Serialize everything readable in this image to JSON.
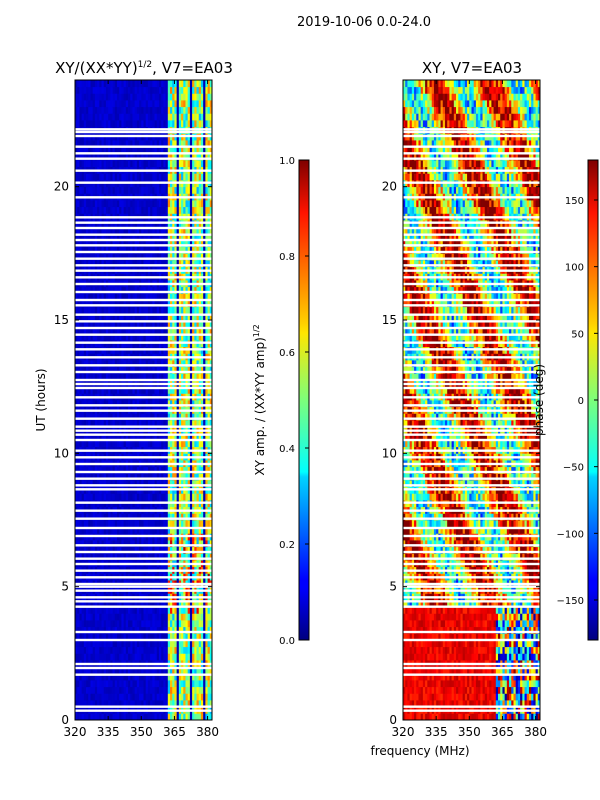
{
  "figure": {
    "suptitle": "2019-10-06 0.0-24.0",
    "shared_xlabel": "frequency (MHz)"
  },
  "chart_data": [
    {
      "type": "heatmap",
      "id": "amp",
      "title_main": "XY/(XX*YY)",
      "title_exp": "1/2",
      "title_tail": ", V7=EA03",
      "ylabel": "UT (hours)",
      "xlim": [
        320,
        382
      ],
      "ylim": [
        0,
        24
      ],
      "xticks": [
        320,
        335,
        350,
        365,
        380
      ],
      "yticks": [
        0,
        5,
        10,
        15,
        20
      ],
      "colorbar": {
        "label_main": "XY amp. / (XX*YY amp)",
        "label_exp": "1/2",
        "range": [
          0.0,
          1.0
        ],
        "ticks": [
          "0.0",
          "0.2",
          "0.4",
          "0.6",
          "0.8",
          "1.0"
        ],
        "tick_values": [
          0.0,
          0.2,
          0.4,
          0.6,
          0.8,
          1.0
        ]
      },
      "description_regions": {
        "low_band_mhz": [
          320,
          362
        ],
        "low_band_value": 0.05,
        "high_band_mhz": [
          362,
          382
        ],
        "high_band_value_range": [
          0.3,
          0.95
        ]
      }
    },
    {
      "type": "heatmap",
      "id": "phase",
      "title_main": "XY, V7=EA03",
      "ylabel": "",
      "xlim": [
        320,
        382
      ],
      "ylim": [
        0,
        24
      ],
      "xticks": [
        320,
        335,
        350,
        365,
        380
      ],
      "yticks": [
        0,
        5,
        10,
        15,
        20
      ],
      "colorbar": {
        "label_main": "phase (deg)",
        "range": [
          -180,
          180
        ],
        "ticks": [
          "−150",
          "−100",
          "−50",
          "0",
          "50",
          "100",
          "150"
        ],
        "tick_values": [
          -150,
          -100,
          -50,
          0,
          50,
          100,
          150
        ]
      },
      "description_regions": {
        "early_hours": [
          0,
          4.3
        ],
        "early_phase_deg": 160,
        "later_phase_range_deg": [
          -180,
          180
        ]
      }
    }
  ],
  "gap_rows_hours": [
    0.35,
    0.5,
    1.7,
    1.95,
    2.1,
    3.0,
    3.3,
    4.25,
    4.45,
    4.6,
    4.85,
    5.0,
    5.1,
    5.35,
    5.6,
    5.85,
    6.05,
    6.3,
    6.55,
    6.9,
    7.2,
    7.55,
    7.85,
    8.15,
    8.65,
    8.8,
    9.05,
    9.3,
    9.6,
    9.85,
    10.1,
    10.5,
    10.7,
    10.85,
    11.0,
    11.3,
    11.6,
    11.8,
    12.1,
    12.45,
    12.6,
    12.75,
    13.05,
    13.3,
    13.6,
    13.9,
    14.15,
    14.45,
    14.7,
    14.95,
    15.2,
    15.55,
    15.75,
    16.05,
    16.35,
    16.6,
    16.85,
    17.05,
    17.3,
    17.55,
    17.8,
    18.0,
    18.2,
    18.45,
    18.65,
    18.85,
    19.6,
    20.15,
    20.6,
    21.05,
    21.25,
    21.5,
    21.9,
    22.05,
    22.15
  ]
}
